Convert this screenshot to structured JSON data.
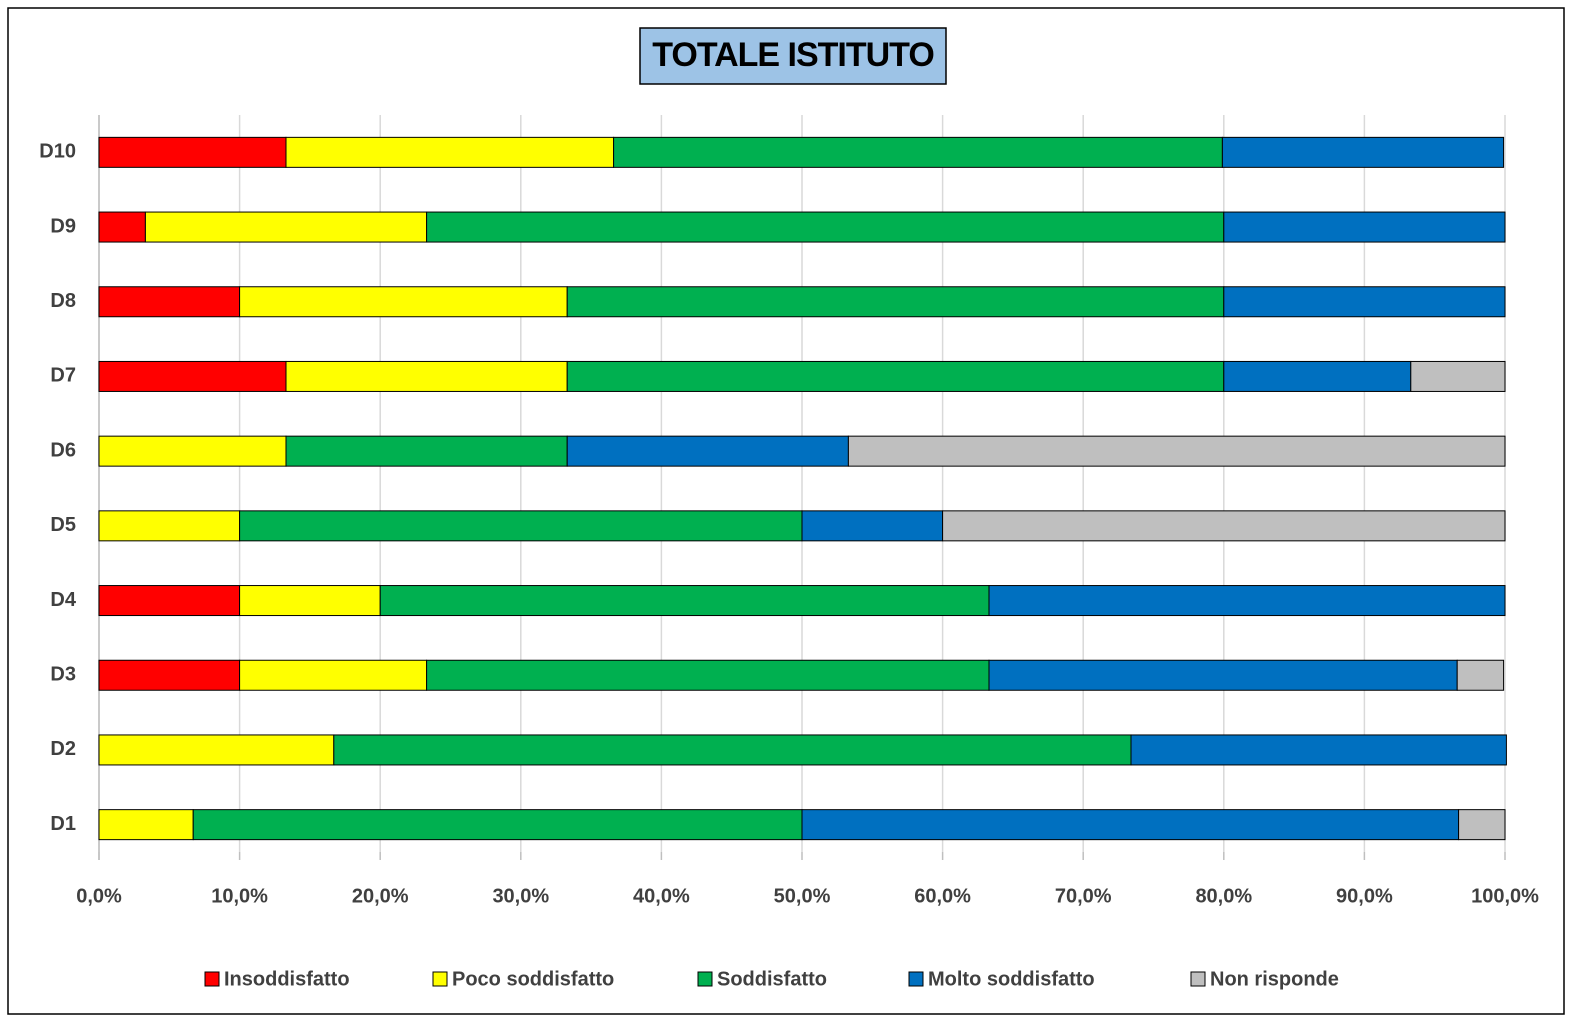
{
  "chart_data": {
    "type": "stacked_bar_horizontal",
    "title": "TOTALE ISTITUTO",
    "categories": [
      "D1",
      "D2",
      "D3",
      "D4",
      "D5",
      "D6",
      "D7",
      "D8",
      "D9",
      "D10"
    ],
    "series": [
      {
        "name": "Insoddisfatto",
        "color": "#ff0000",
        "values": [
          0,
          0,
          10,
          10,
          0,
          0,
          13.3,
          10,
          3.3,
          13.3
        ]
      },
      {
        "name": "Poco soddisfatto",
        "color": "#ffff00",
        "values": [
          6.7,
          16.7,
          13.3,
          10,
          10,
          13.3,
          20,
          23.3,
          20,
          23.3
        ]
      },
      {
        "name": "Soddisfatto",
        "color": "#00b050",
        "values": [
          43.3,
          56.7,
          40,
          43.3,
          40,
          20,
          46.7,
          46.7,
          56.7,
          43.3
        ]
      },
      {
        "name": "Molto soddisfatto",
        "color": "#0070c0",
        "values": [
          46.7,
          26.7,
          33.3,
          36.7,
          10,
          20,
          13.3,
          20,
          20,
          20
        ]
      },
      {
        "name": "Non risponde",
        "color": "#bfbfbf",
        "values": [
          3.3,
          0,
          3.3,
          0,
          40,
          46.7,
          6.7,
          0,
          0,
          0
        ]
      }
    ],
    "xlim": [
      0,
      100
    ],
    "xticks": [
      {
        "value": 0,
        "label": "0,0%"
      },
      {
        "value": 10,
        "label": "10,0%"
      },
      {
        "value": 20,
        "label": "20,0%"
      },
      {
        "value": 30,
        "label": "30,0%"
      },
      {
        "value": 40,
        "label": "40,0%"
      },
      {
        "value": 50,
        "label": "50,0%"
      },
      {
        "value": 60,
        "label": "60,0%"
      },
      {
        "value": 70,
        "label": "70,0%"
      },
      {
        "value": 80,
        "label": "80,0%"
      },
      {
        "value": 90,
        "label": "90,0%"
      },
      {
        "value": 100,
        "label": "100,0%"
      }
    ],
    "grid": true,
    "legend": "bottom"
  }
}
